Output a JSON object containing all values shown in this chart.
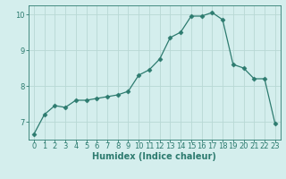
{
  "x": [
    0,
    1,
    2,
    3,
    4,
    5,
    6,
    7,
    8,
    9,
    10,
    11,
    12,
    13,
    14,
    15,
    16,
    17,
    18,
    19,
    20,
    21,
    22,
    23
  ],
  "y": [
    6.65,
    7.2,
    7.45,
    7.4,
    7.6,
    7.6,
    7.65,
    7.7,
    7.75,
    7.85,
    8.3,
    8.45,
    8.75,
    9.35,
    9.5,
    9.95,
    9.95,
    10.05,
    9.85,
    8.6,
    8.5,
    8.2,
    8.2,
    6.95
  ],
  "line_color": "#2d7b6f",
  "marker": "D",
  "marker_size": 2.5,
  "bg_color": "#d4eeed",
  "grid_color": "#b8d8d5",
  "xlabel": "Humidex (Indice chaleur)",
  "ylim": [
    6.5,
    10.25
  ],
  "xlim": [
    -0.5,
    23.5
  ],
  "yticks": [
    7,
    8,
    9,
    10
  ],
  "xticks": [
    0,
    1,
    2,
    3,
    4,
    5,
    6,
    7,
    8,
    9,
    10,
    11,
    12,
    13,
    14,
    15,
    16,
    17,
    18,
    19,
    20,
    21,
    22,
    23
  ],
  "tick_color": "#2d7b6f",
  "label_color": "#2d7b6f",
  "label_fontsize": 7,
  "tick_fontsize": 6
}
